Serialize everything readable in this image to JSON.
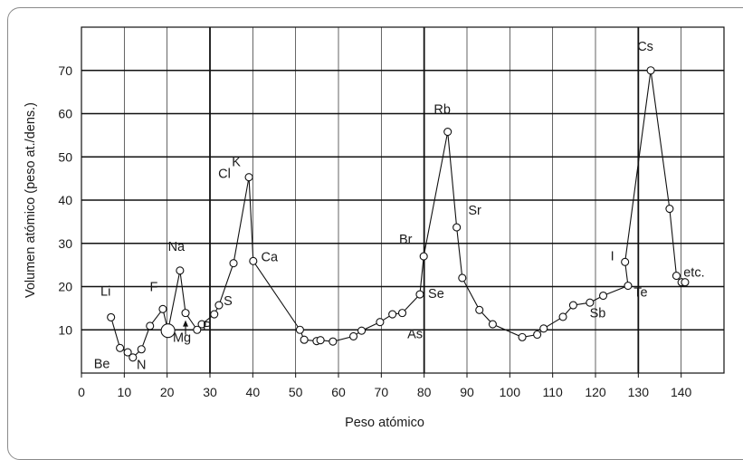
{
  "chart_data": {
    "type": "line",
    "xlabel": "Peso atómico",
    "ylabel": "Volumen atómico (peso at./dens.)",
    "xlim": [
      0,
      150
    ],
    "ylim": [
      0,
      80
    ],
    "x_ticks": [
      0,
      10,
      20,
      30,
      40,
      50,
      60,
      70,
      80,
      90,
      100,
      110,
      120,
      130,
      140
    ],
    "y_ticks": [
      10,
      20,
      30,
      40,
      50,
      60,
      70
    ],
    "grid": {
      "major_x": [
        30,
        80,
        130
      ],
      "major_y": [
        10,
        20,
        30,
        40,
        50,
        60,
        70
      ],
      "minor_x_step": 10
    },
    "series": [
      {
        "points": [
          [
            6.9,
            12.9
          ],
          [
            9.0,
            5.8
          ],
          [
            10.8,
            4.8
          ],
          [
            12.0,
            3.6
          ],
          [
            14.0,
            5.5
          ],
          [
            16.0,
            10.9
          ],
          [
            19.0,
            14.8
          ],
          [
            20.2,
            9.8
          ],
          [
            23.0,
            23.7
          ],
          [
            24.3,
            13.9
          ],
          [
            27.0,
            10.0
          ],
          [
            28.1,
            11.3
          ],
          [
            31.0,
            13.6
          ],
          [
            32.1,
            15.7
          ],
          [
            35.5,
            25.4
          ],
          [
            39.1,
            45.3
          ],
          [
            40.1,
            25.9
          ],
          [
            51.0,
            10.0
          ],
          [
            52.0,
            7.7
          ],
          [
            54.9,
            7.4
          ],
          [
            55.8,
            7.6
          ],
          [
            58.7,
            7.3
          ],
          [
            63.5,
            8.5
          ],
          [
            65.4,
            9.8
          ],
          [
            69.7,
            11.8
          ],
          [
            72.6,
            13.6
          ],
          [
            74.9,
            13.9
          ],
          [
            79.0,
            18.2
          ],
          [
            79.9,
            27.0
          ],
          [
            85.5,
            55.8
          ],
          [
            87.6,
            33.7
          ],
          [
            88.9,
            22.0
          ],
          [
            92.9,
            14.6
          ],
          [
            96.0,
            11.3
          ],
          [
            102.9,
            8.3
          ],
          [
            106.4,
            8.9
          ],
          [
            107.9,
            10.3
          ],
          [
            112.4,
            13.0
          ],
          [
            114.8,
            15.7
          ],
          [
            118.7,
            16.3
          ],
          [
            121.8,
            17.9
          ],
          [
            127.6,
            20.2
          ],
          [
            126.9,
            25.7
          ],
          [
            132.9,
            70.0
          ],
          [
            137.3,
            38.0
          ],
          [
            138.9,
            22.5
          ],
          [
            140.1,
            21.0
          ],
          [
            140.9,
            21.0
          ]
        ],
        "labels": [
          {
            "text": "Li",
            "x": 6.9
          },
          {
            "text": "Be",
            "x": 9.0
          },
          {
            "text": "N",
            "x": 14.0
          },
          {
            "text": "F",
            "x": 19.0
          },
          {
            "text": "Na",
            "x": 23.0
          },
          {
            "text": "Mg",
            "x": 24.3
          },
          {
            "text": "Cl",
            "x": 35.5
          },
          {
            "text": "P",
            "x": 31.0
          },
          {
            "text": "S",
            "x": 32.1
          },
          {
            "text": "K",
            "x": 39.1
          },
          {
            "text": "Ca",
            "x": 40.1
          },
          {
            "text": "As",
            "x": 74.9
          },
          {
            "text": "Se",
            "x": 79.0
          },
          {
            "text": "Br",
            "x": 79.9
          },
          {
            "text": "Rb",
            "x": 85.5
          },
          {
            "text": "Sr",
            "x": 87.6
          },
          {
            "text": "Sb",
            "x": 121.8
          },
          {
            "text": "Te",
            "x": 127.6
          },
          {
            "text": "I",
            "x": 126.9
          },
          {
            "text": "Cs",
            "x": 132.9
          },
          {
            "text": "etc.",
            "x": 141.0
          }
        ]
      }
    ]
  }
}
